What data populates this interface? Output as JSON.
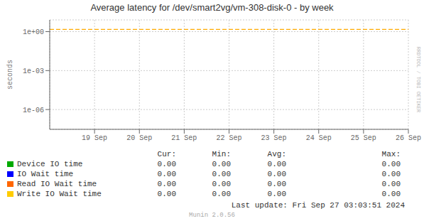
{
  "chart_data": {
    "type": "line",
    "title": "Average latency for /dev/smart2vg/vm-308-disk-0 - by week",
    "y_label": "seconds",
    "log": "y",
    "grid": true,
    "xlim": [
      0,
      8
    ],
    "xticks": [
      {
        "value": 1,
        "label": "19 Sep"
      },
      {
        "value": 2,
        "label": "20 Sep"
      },
      {
        "value": 3,
        "label": "21 Sep"
      },
      {
        "value": 4,
        "label": "22 Sep"
      },
      {
        "value": 5,
        "label": "23 Sep"
      },
      {
        "value": 6,
        "label": "24 Sep"
      },
      {
        "value": 7,
        "label": "25 Sep"
      },
      {
        "value": 8,
        "label": "26 Sep"
      }
    ],
    "ylim": [
      3e-08,
      8.0
    ],
    "yticks": [
      {
        "value": 1,
        "label": "1e+00"
      },
      {
        "value": 0.001,
        "label": "1e-03"
      },
      {
        "value": 1e-06,
        "label": "1e-06"
      }
    ],
    "hlines": [
      {
        "value": 1.5,
        "color": "#ffaa00",
        "line_style": "dashed"
      }
    ],
    "table_headers": [
      "Cur:",
      "Min:",
      "Avg:",
      "Max:"
    ],
    "series": [
      {
        "name": "Device IO time",
        "color": "#00aa00",
        "table_values": [
          "0.00",
          "0.00",
          "0.00",
          "0.00"
        ]
      },
      {
        "name": "IO Wait time",
        "color": "#0000ff",
        "table_values": [
          "0.00",
          "0.00",
          "0.00",
          "0.00"
        ]
      },
      {
        "name": "Read IO Wait time",
        "color": "#ff6600",
        "table_values": [
          "0.00",
          "0.00",
          "0.00",
          "0.00"
        ]
      },
      {
        "name": "Write IO Wait time",
        "color": "#ffcc00",
        "table_values": [
          "0.00",
          "0.00",
          "0.00",
          "0.00"
        ]
      }
    ],
    "annotations": [
      "Last update: Fri Sep 27 03:03:51 2024",
      "Munin 2.0.56",
      "RRDTOOL / TOBI OETIKER"
    ]
  }
}
